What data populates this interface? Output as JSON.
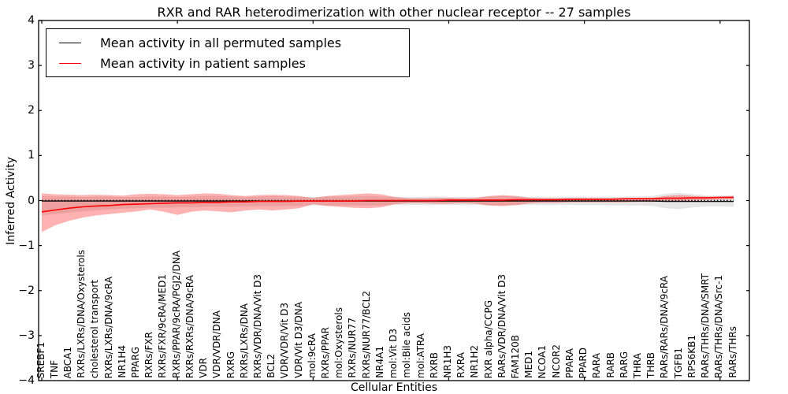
{
  "figure": {
    "title": "RXR and RAR heterodimerization with other nuclear receptor -- 27 samples",
    "xlabel": "Cellular Entities",
    "ylabel": "Inferred Activity"
  },
  "legend": {
    "entries": [
      {
        "label": "Mean activity in all permuted samples",
        "color": "#000000"
      },
      {
        "label": "Mean activity in patient samples",
        "color": "#ff0000"
      }
    ]
  },
  "chart_data": {
    "type": "line",
    "title": "RXR and RAR heterodimerization with other nuclear receptor -- 27 samples",
    "xlabel": "Cellular Entities",
    "ylabel": "Inferred Activity",
    "ylim": [
      -4,
      4
    ],
    "yticks": [
      -4,
      -3,
      -2,
      -1,
      0,
      1,
      2,
      3,
      4
    ],
    "grid": false,
    "legend_position": "upper left",
    "categories": [
      "SREBF1",
      "TNF",
      "ABCA1",
      "RXRs/LXRs/DNA/Oxysterols",
      "cholesterol transport",
      "RXRs/LXRs/DNA/9cRA",
      "NR1H4",
      "PPARG",
      "RXRs/FXR",
      "RXRs/FXR/9cRA/MED1",
      "RXRs/PPAR/9cRA/PGJ2/DNA",
      "RXRs/RXRs/DNA/9cRA",
      "VDR",
      "VDR/VDR/DNA",
      "RXRG",
      "RXRs/LXRs/DNA",
      "RXRs/VDR/DNA/Vit D3",
      "BCL2",
      "VDR/VDR/Vit D3",
      "VDR/Vit D3/DNA",
      "mol:9cRA",
      "RXRs/PPAR",
      "mol:Oxysterols",
      "RXRs/NUR77",
      "RXRs/NUR77/BCL2",
      "NR4A1",
      "mol:Vit D3",
      "mol:Bile acids",
      "mol:ATRA",
      "RXRB",
      "NR1H3",
      "RXRA",
      "NR1H2",
      "RXR alpha/CCPG",
      "RARs/VDR/DNA/Vit D3",
      "FAM120B",
      "MED1",
      "NCOA1",
      "NCOR2",
      "PPARA",
      "PPARD",
      "RARA",
      "RARB",
      "RARG",
      "THRA",
      "THRB",
      "RARs/RARs/DNA/9cRA",
      "TGFB1",
      "RPS6KB1",
      "RARs/THRs/DNA/SMRT",
      "RARs/THRs/DNA/Src-1",
      "RARs/THRs"
    ],
    "series": [
      {
        "name": "Mean activity in all permuted samples",
        "color": "#000000",
        "values": [
          -0.01,
          -0.01,
          -0.01,
          -0.01,
          -0.01,
          -0.01,
          -0.01,
          -0.01,
          -0.01,
          -0.01,
          -0.01,
          -0.01,
          -0.01,
          -0.01,
          -0.01,
          -0.01,
          -0.01,
          -0.01,
          -0.01,
          -0.01,
          -0.01,
          -0.01,
          -0.01,
          -0.01,
          -0.01,
          -0.01,
          -0.01,
          -0.01,
          -0.01,
          -0.01,
          -0.01,
          -0.01,
          -0.01,
          -0.01,
          -0.01,
          -0.01,
          -0.01,
          -0.01,
          -0.01,
          -0.01,
          -0.01,
          -0.01,
          -0.01,
          -0.01,
          -0.01,
          -0.01,
          -0.02,
          -0.02,
          -0.02,
          -0.02,
          -0.02,
          -0.02
        ]
      },
      {
        "name": "Mean activity in patient samples",
        "color": "#ff0000",
        "values": [
          -0.25,
          -0.21,
          -0.17,
          -0.14,
          -0.12,
          -0.11,
          -0.09,
          -0.08,
          -0.07,
          -0.06,
          -0.05,
          -0.05,
          -0.04,
          -0.04,
          -0.03,
          -0.03,
          -0.02,
          -0.02,
          -0.02,
          -0.01,
          -0.01,
          -0.01,
          -0.01,
          -0.01,
          0.0,
          0.0,
          0.0,
          0.0,
          0.0,
          0.0,
          0.01,
          0.01,
          0.01,
          0.01,
          0.01,
          0.02,
          0.02,
          0.02,
          0.02,
          0.03,
          0.03,
          0.03,
          0.03,
          0.04,
          0.04,
          0.04,
          0.05,
          0.05,
          0.06,
          0.06,
          0.07,
          0.07
        ]
      }
    ],
    "bands": [
      {
        "name": "permuted samples range",
        "color": "rgba(0,0,0,0.10)",
        "upper": [
          0.1,
          0.09,
          0.09,
          0.08,
          0.09,
          0.09,
          0.08,
          0.08,
          0.09,
          0.09,
          0.08,
          0.09,
          0.1,
          0.1,
          0.09,
          0.08,
          0.09,
          0.1,
          0.09,
          0.08,
          0.08,
          0.09,
          0.09,
          0.09,
          0.1,
          0.09,
          0.08,
          0.08,
          0.08,
          0.09,
          0.08,
          0.08,
          0.08,
          0.09,
          0.1,
          0.09,
          0.08,
          0.08,
          0.08,
          0.08,
          0.08,
          0.08,
          0.08,
          0.09,
          0.09,
          0.1,
          0.15,
          0.17,
          0.14,
          0.11,
          0.11,
          0.12
        ],
        "lower": [
          -0.33,
          -0.3,
          -0.27,
          -0.24,
          -0.22,
          -0.2,
          -0.18,
          -0.17,
          -0.16,
          -0.16,
          -0.15,
          -0.15,
          -0.14,
          -0.14,
          -0.14,
          -0.13,
          -0.13,
          -0.13,
          -0.12,
          -0.12,
          -0.11,
          -0.11,
          -0.11,
          -0.11,
          -0.11,
          -0.11,
          -0.1,
          -0.1,
          -0.1,
          -0.1,
          -0.1,
          -0.1,
          -0.1,
          -0.11,
          -0.11,
          -0.1,
          -0.1,
          -0.1,
          -0.1,
          -0.1,
          -0.1,
          -0.1,
          -0.11,
          -0.11,
          -0.11,
          -0.12,
          -0.17,
          -0.19,
          -0.15,
          -0.13,
          -0.13,
          -0.14
        ]
      },
      {
        "name": "patient samples range",
        "color": "rgba(255,0,0,0.30)",
        "upper": [
          0.16,
          0.14,
          0.13,
          0.12,
          0.13,
          0.12,
          0.11,
          0.14,
          0.15,
          0.14,
          0.12,
          0.14,
          0.16,
          0.15,
          0.12,
          0.1,
          0.12,
          0.13,
          0.12,
          0.1,
          0.06,
          0.1,
          0.12,
          0.14,
          0.16,
          0.14,
          0.08,
          0.05,
          0.05,
          0.06,
          0.06,
          0.05,
          0.06,
          0.1,
          0.12,
          0.1,
          0.06,
          0.05,
          0.05,
          0.05,
          0.05,
          0.05,
          0.05,
          0.05,
          0.06,
          0.06,
          0.1,
          0.12,
          0.1,
          0.09,
          0.09,
          0.1
        ],
        "lower": [
          -0.7,
          -0.55,
          -0.45,
          -0.38,
          -0.33,
          -0.3,
          -0.27,
          -0.24,
          -0.2,
          -0.25,
          -0.32,
          -0.25,
          -0.22,
          -0.24,
          -0.26,
          -0.22,
          -0.2,
          -0.22,
          -0.2,
          -0.17,
          -0.08,
          -0.12,
          -0.14,
          -0.16,
          -0.17,
          -0.15,
          -0.08,
          -0.06,
          -0.06,
          -0.07,
          -0.07,
          -0.06,
          -0.07,
          -0.11,
          -0.12,
          -0.1,
          -0.06,
          -0.05,
          -0.05,
          -0.04,
          -0.04,
          -0.04,
          -0.04,
          -0.04,
          -0.03,
          -0.03,
          -0.02,
          -0.01,
          0.0,
          0.01,
          0.02,
          0.03
        ]
      }
    ],
    "zero_line": {
      "value": 0,
      "style": "dotted",
      "color": "#000000"
    }
  }
}
